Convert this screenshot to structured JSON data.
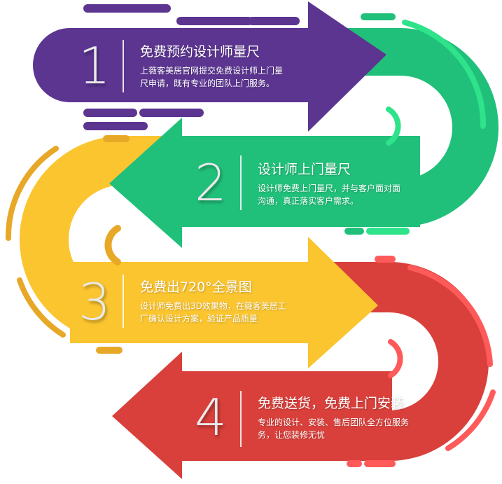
{
  "steps": [
    {
      "number": "1",
      "title": "免费预约设计师量尺",
      "desc_line1": "上薇客美居官网提交免费设计师上门量",
      "desc_line2": "尺申请，既有专业的团队上门服务。",
      "color": "#5c3591"
    },
    {
      "number": "2",
      "title": "设计师上门量尺",
      "desc_line1": "设计师免费上门量尺，并与客户面对面",
      "desc_line2": "沟通，真正落实客户需求。",
      "color": "#21c07a"
    },
    {
      "number": "3",
      "title": "免费出720°全景图",
      "desc_line1": "设计师免费出3D效果物，在薇客美居工",
      "desc_line2": "厂确认设计方案，验证产品质量",
      "color": "#fbc530"
    },
    {
      "number": "4",
      "title": "免费送货，免费上门安装",
      "desc_line1": "专业的设计、安装、售后团队全方位服务",
      "desc_line2": "务，让您装修无忧",
      "color": "#d9403b"
    }
  ]
}
